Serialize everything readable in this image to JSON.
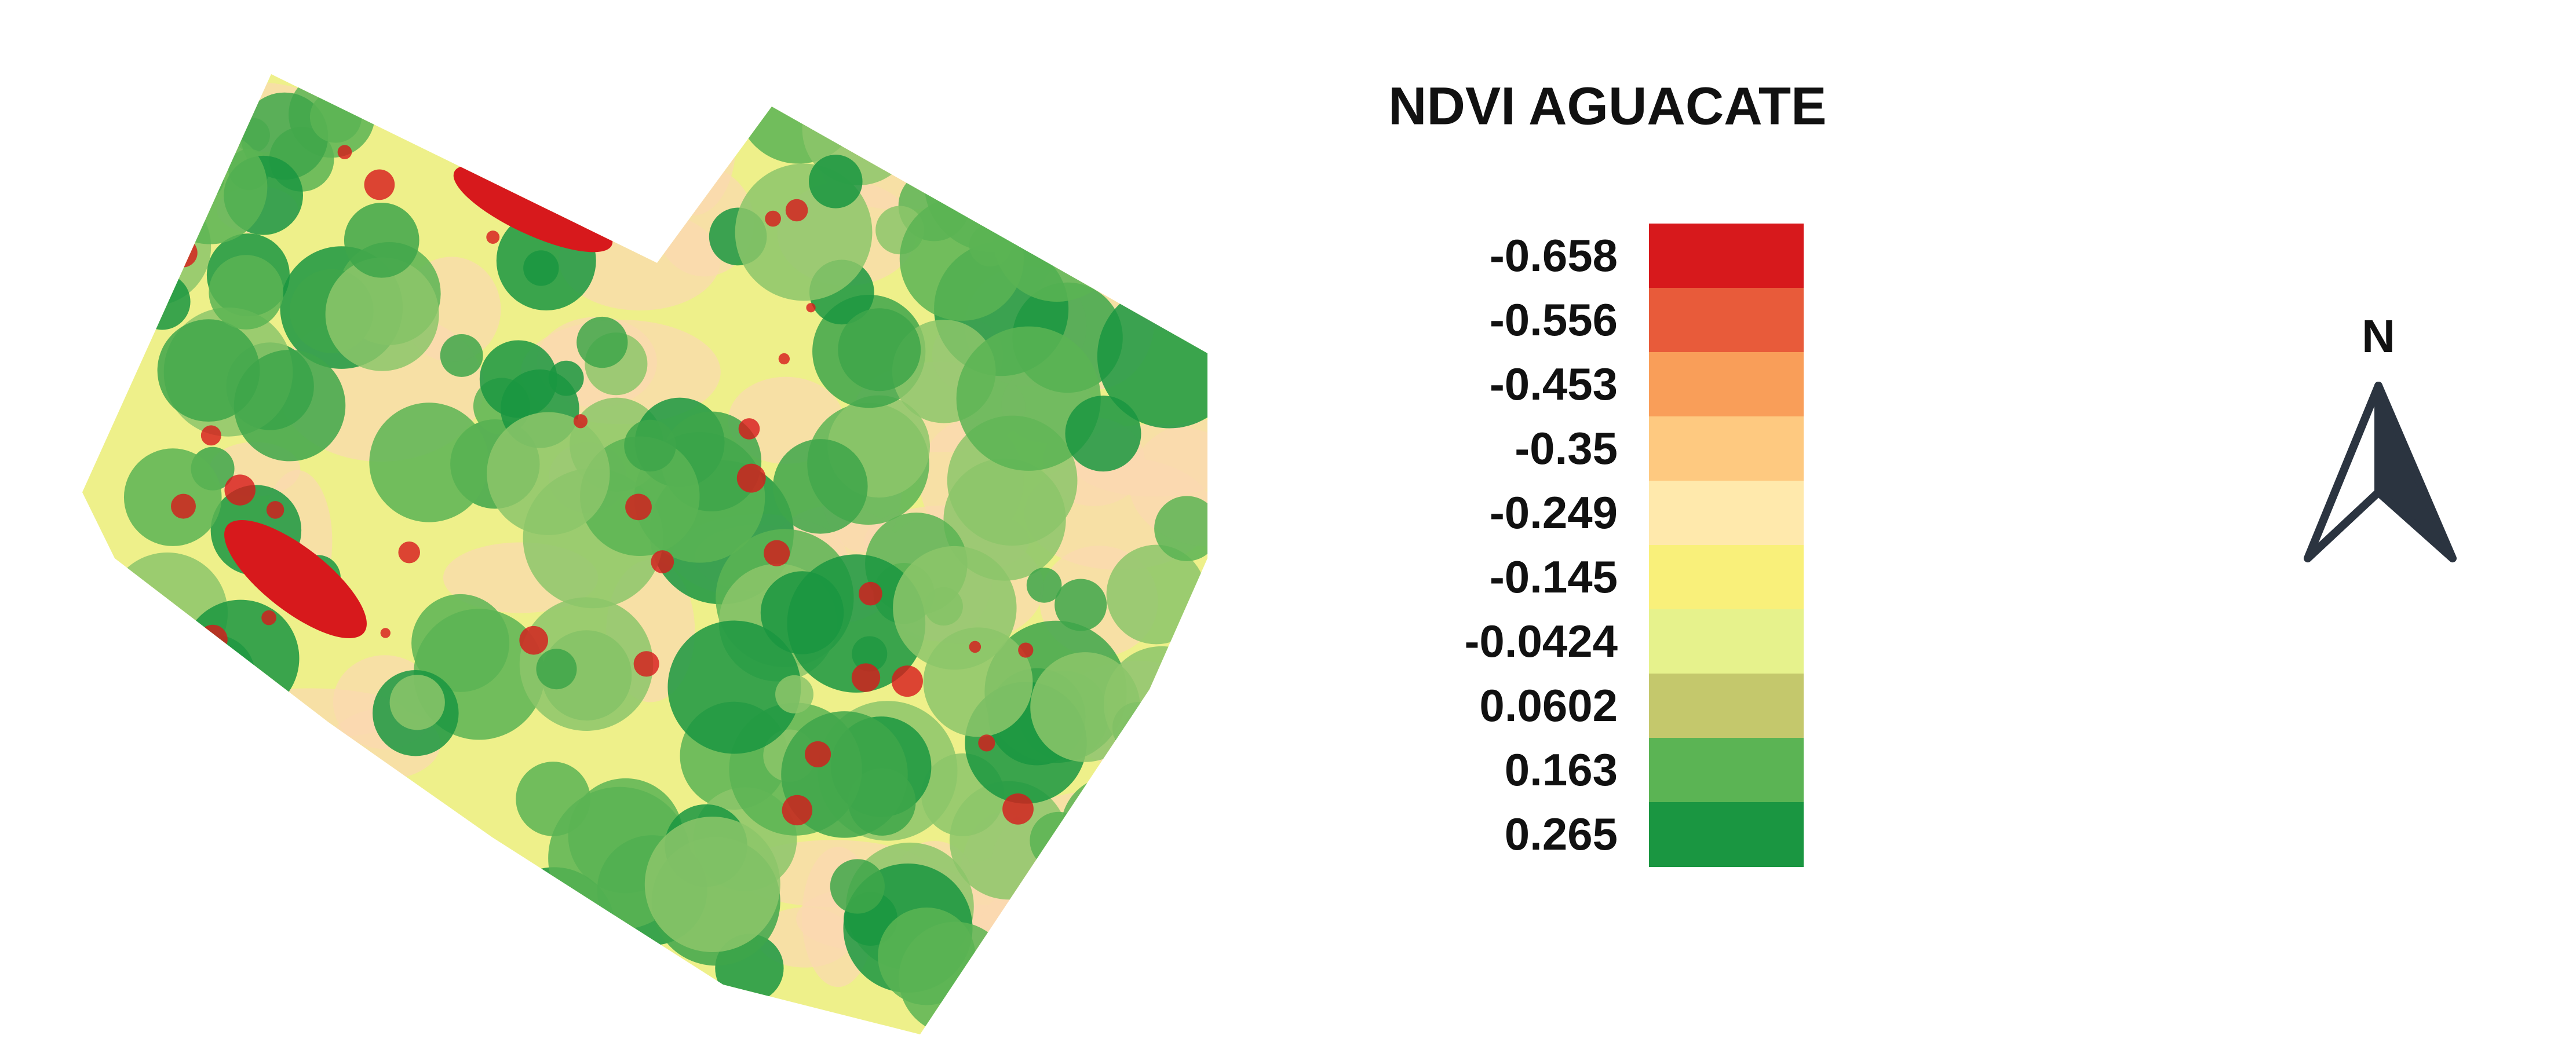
{
  "title": "NDVI AGUACATE",
  "legend": [
    {
      "label": "-0.658",
      "color": "#d7191c"
    },
    {
      "label": "-0.556",
      "color": "#e85b3a"
    },
    {
      "label": "-0.453",
      "color": "#f99e59"
    },
    {
      "label": "-0.35",
      "color": "#fec980"
    },
    {
      "label": "-0.249",
      "color": "#ffe9ac"
    },
    {
      "label": "-0.145",
      "color": "#f9f07a"
    },
    {
      "label": "-0.0424",
      "color": "#e6f28c"
    },
    {
      "label": "0.0602",
      "color": "#c4c86c"
    },
    {
      "label": "0.163",
      "color": "#5bb454"
    },
    {
      "label": "0.265",
      "color": "#1a9641"
    }
  ],
  "north": "N"
}
